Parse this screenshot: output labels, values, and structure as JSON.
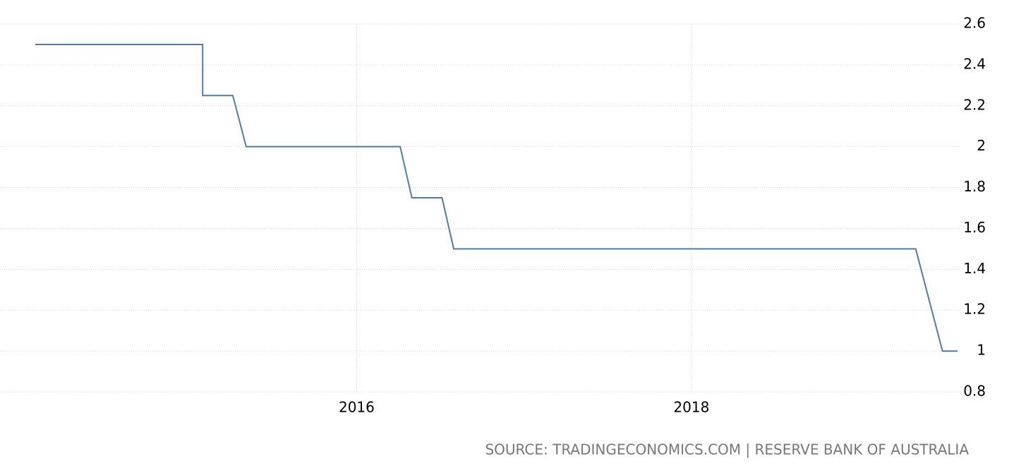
{
  "chart_data": {
    "type": "line",
    "source": "SOURCE: TRADINGECONOMICS.COM | RESERVE BANK OF AUSTRALIA",
    "x": [
      2014.08,
      2015.08,
      2015.08,
      2015.26,
      2015.34,
      2016.26,
      2016.33,
      2016.51,
      2016.58,
      2019.34,
      2019.42,
      2019.5,
      2019.59
    ],
    "values": [
      2.5,
      2.5,
      2.25,
      2.25,
      2,
      2,
      1.75,
      1.75,
      1.5,
      1.5,
      1.25,
      1,
      1
    ],
    "color": "#4a7eb1",
    "xlim": [
      2014.08,
      2019.59
    ],
    "xticks": [
      2016,
      2018
    ],
    "ylim": [
      0.8,
      2.6
    ],
    "yticks": [
      0.8,
      1,
      1.2,
      1.4,
      1.6,
      1.8,
      2,
      2.2,
      2.4,
      2.6
    ],
    "grid": true
  }
}
